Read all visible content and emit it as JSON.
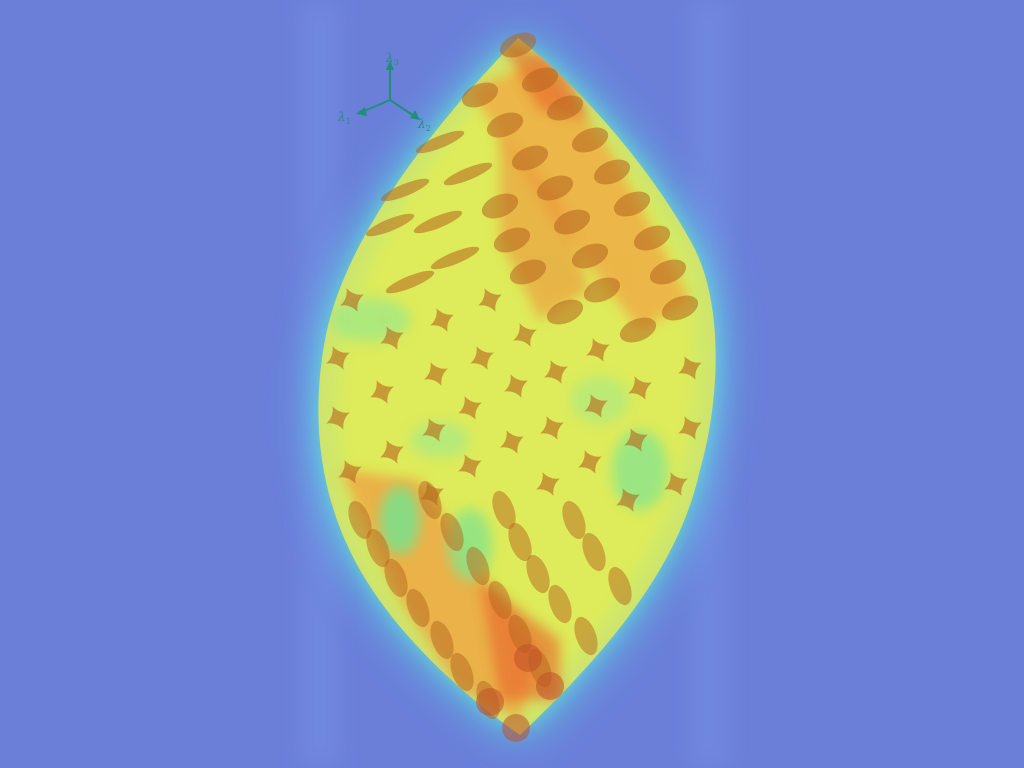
{
  "axes": {
    "x_label": "λ",
    "x_sub": "1",
    "y_label": "λ",
    "y_sub": "2",
    "z_label": "λ",
    "z_sub": "3"
  },
  "colors": {
    "background": "#6b7fd9",
    "axis": "#1f8f7a",
    "glyph": "#b5651d"
  }
}
